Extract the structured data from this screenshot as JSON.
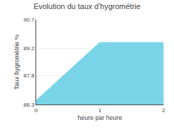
{
  "chart_data": {
    "type": "area",
    "title": "Evolution du taux d'hygrométrie",
    "xlabel": "heure par heure",
    "ylabel": "Taux hygrométrie %",
    "x": [
      0,
      1,
      2
    ],
    "values": [
      86.5,
      89.5,
      89.5
    ],
    "color": "#7ad4e8",
    "xlim": [
      0,
      2
    ],
    "ylim": [
      86.3,
      90.7
    ],
    "xticks": [
      0,
      1,
      2
    ],
    "yticks": [
      86.3,
      87.8,
      89.2,
      90.7
    ],
    "grid": true
  }
}
